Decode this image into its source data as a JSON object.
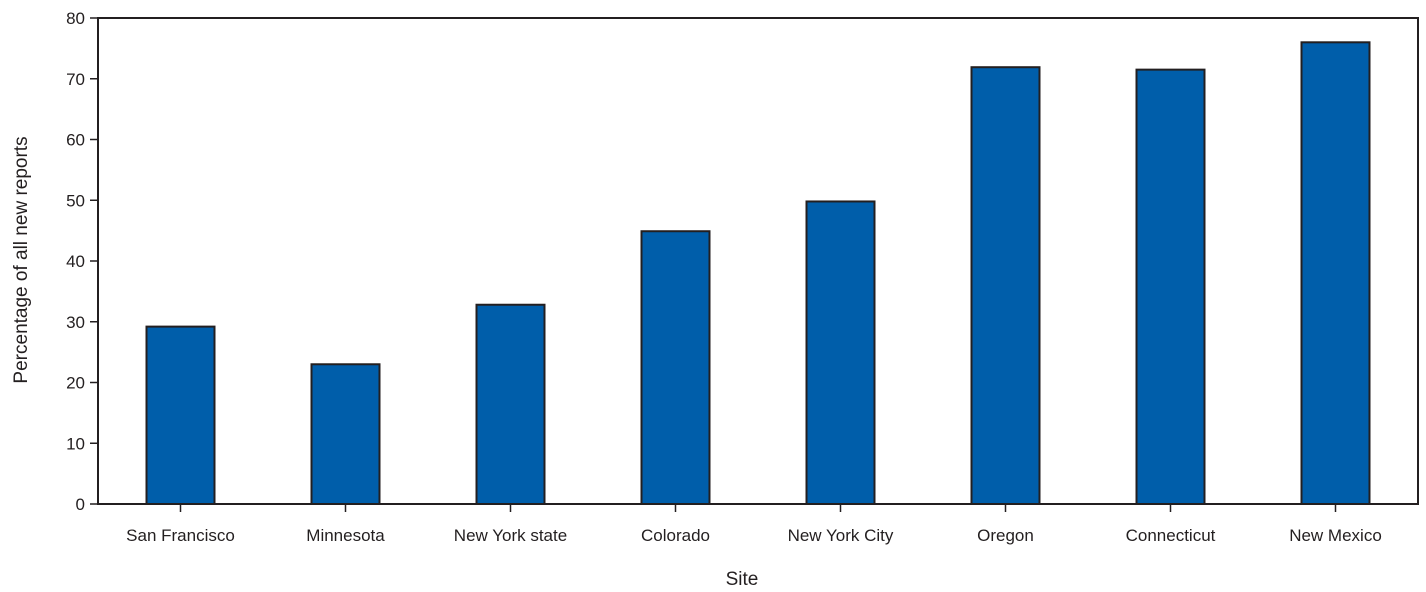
{
  "chart_data": {
    "type": "bar",
    "title": "",
    "xlabel": "Site",
    "ylabel": "Percentage of all new reports",
    "categories": [
      "San Francisco",
      "Minnesota",
      "New York state",
      "Colorado",
      "New York City",
      "Oregon",
      "Connecticut",
      "New Mexico"
    ],
    "values": [
      29.2,
      23.0,
      32.8,
      44.9,
      49.8,
      71.9,
      71.5,
      76.0
    ],
    "ylim": [
      0,
      80
    ],
    "yticks": [
      0,
      10,
      20,
      30,
      40,
      50,
      60,
      70,
      80
    ],
    "grid": false,
    "legend": "none",
    "colors": {
      "bar": "#005eaa",
      "bar_edge": "#231f20",
      "axis": "#231f20"
    }
  }
}
